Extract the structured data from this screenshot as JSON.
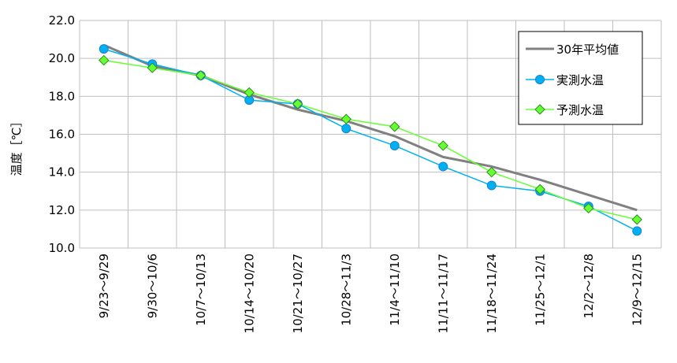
{
  "chart_data": {
    "type": "line",
    "title": "",
    "xlabel": "",
    "ylabel": "温度［℃］",
    "ylim": [
      10.0,
      22.0
    ],
    "yticks": [
      "22.0",
      "20.0",
      "18.0",
      "16.0",
      "14.0",
      "12.0",
      "10.0"
    ],
    "grid": true,
    "legend_position": "top-right",
    "categories": [
      "9/23～9/29",
      "9/30～10/6",
      "10/7～10/13",
      "10/14～10/20",
      "10/21～10/27",
      "10/28～11/3",
      "11/4～11/10",
      "11/11～11/17",
      "11/18～11/24",
      "11/25～12/1",
      "12/2～12/8",
      "12/9～12/15"
    ],
    "series": [
      {
        "name": "30年平均値",
        "color": "#808080",
        "marker": "none",
        "values": [
          20.7,
          19.6,
          19.1,
          18.1,
          17.3,
          16.7,
          15.9,
          14.8,
          14.3,
          13.6,
          12.8,
          12.0
        ]
      },
      {
        "name": "実測水温",
        "color": "#00B0F0",
        "marker": "circle",
        "values": [
          20.5,
          19.7,
          19.1,
          17.8,
          17.6,
          16.3,
          15.4,
          14.3,
          13.3,
          13.0,
          12.2,
          10.9
        ]
      },
      {
        "name": "予測水温",
        "color": "#66FF33",
        "marker": "diamond",
        "values": [
          19.9,
          19.5,
          19.1,
          18.2,
          17.6,
          16.8,
          16.4,
          15.4,
          14.0,
          13.1,
          12.1,
          11.5
        ]
      }
    ]
  }
}
